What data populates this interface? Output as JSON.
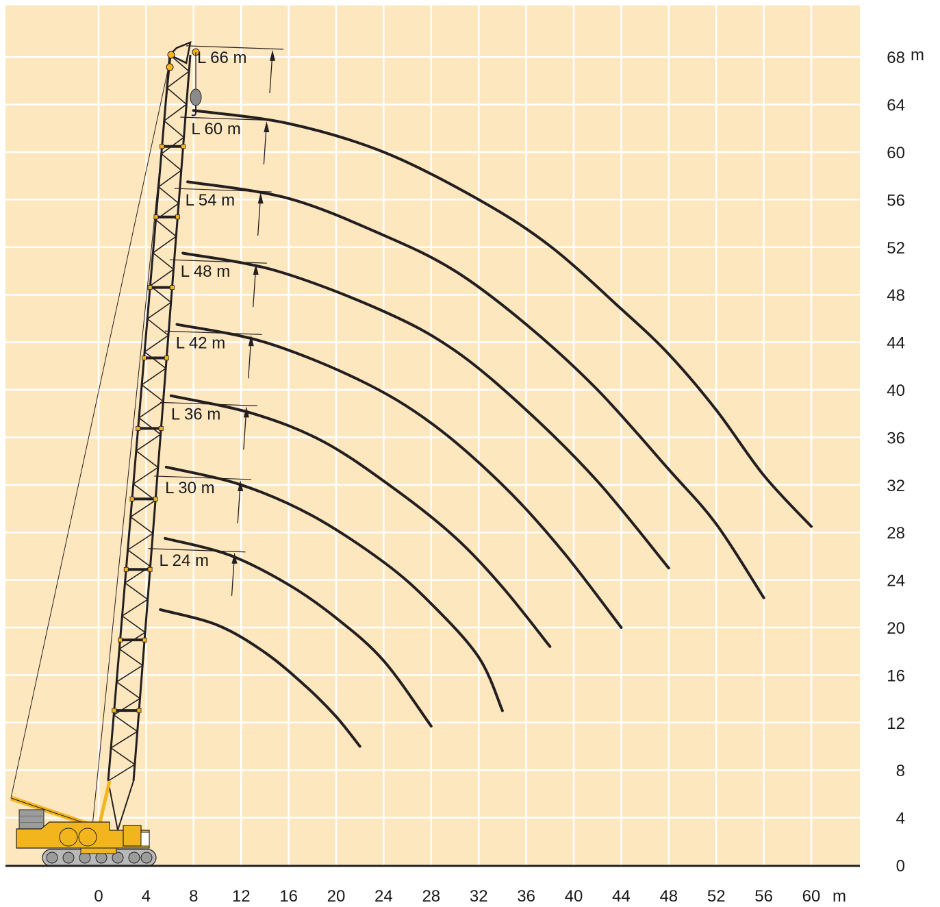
{
  "chart_data": {
    "type": "line",
    "title": "",
    "xlabel": "",
    "ylabel": "",
    "x_unit": "m",
    "y_unit": "m",
    "xlim": [
      -8.2,
      64
    ],
    "ylim": [
      0,
      72
    ],
    "x_ticks": [
      0,
      4,
      8,
      12,
      16,
      20,
      24,
      28,
      32,
      36,
      40,
      44,
      48,
      52,
      56,
      60
    ],
    "y_ticks": [
      0,
      4,
      8,
      12,
      16,
      20,
      24,
      28,
      32,
      36,
      40,
      44,
      48,
      52,
      56,
      60,
      64,
      68
    ],
    "grid": true,
    "background_color": "#fde7bf",
    "grid_color": "#ffffff",
    "curve_color": "#231f20",
    "crane_color": "#f2b51e",
    "series": [
      {
        "name": "L 24 m",
        "label_at": [
          5.1,
          25.2
        ],
        "tip_height_m": 26.8,
        "points": [
          [
            5.2,
            21.5
          ],
          [
            10.0,
            20.2
          ],
          [
            14.0,
            17.9
          ],
          [
            17.5,
            15.0
          ],
          [
            20.0,
            12.5
          ],
          [
            22.0,
            10.0
          ]
        ]
      },
      {
        "name": "L 30 m",
        "label_at": [
          5.6,
          31.3
        ],
        "tip_height_m": 32.8,
        "points": [
          [
            5.6,
            27.5
          ],
          [
            11.0,
            26.1
          ],
          [
            16.0,
            23.6
          ],
          [
            20.0,
            20.8
          ],
          [
            24.0,
            17.2
          ],
          [
            28.0,
            11.7
          ]
        ]
      },
      {
        "name": "L 36 m",
        "label_at": [
          6.1,
          37.5
        ],
        "tip_height_m": 38.8,
        "points": [
          [
            5.7,
            33.5
          ],
          [
            12.0,
            32.0
          ],
          [
            18.0,
            29.4
          ],
          [
            24.0,
            25.5
          ],
          [
            28.0,
            22.0
          ],
          [
            32.0,
            17.5
          ],
          [
            34.0,
            13.0
          ]
        ]
      },
      {
        "name": "L 42 m",
        "label_at": [
          6.5,
          43.5
        ],
        "tip_height_m": 44.8,
        "points": [
          [
            6.1,
            39.5
          ],
          [
            13.0,
            38.0
          ],
          [
            19.0,
            35.6
          ],
          [
            25.0,
            31.6
          ],
          [
            30.0,
            27.6
          ],
          [
            34.0,
            23.4
          ],
          [
            38.0,
            18.4
          ]
        ]
      },
      {
        "name": "L 48 m",
        "label_at": [
          6.9,
          49.5
        ],
        "tip_height_m": 50.8,
        "points": [
          [
            6.6,
            45.5
          ],
          [
            14.0,
            44.0
          ],
          [
            22.0,
            40.8
          ],
          [
            28.0,
            37.2
          ],
          [
            34.0,
            32.0
          ],
          [
            39.0,
            26.5
          ],
          [
            44.0,
            20.0
          ]
        ]
      },
      {
        "name": "L 54 m",
        "label_at": [
          7.3,
          55.5
        ],
        "tip_height_m": 56.8,
        "points": [
          [
            7.1,
            51.5
          ],
          [
            15.0,
            50.0
          ],
          [
            24.0,
            46.6
          ],
          [
            30.0,
            43.3
          ],
          [
            36.0,
            38.3
          ],
          [
            42.0,
            32.3
          ],
          [
            48.0,
            25.0
          ]
        ]
      },
      {
        "name": "L 60 m",
        "label_at": [
          7.8,
          61.5
        ],
        "tip_height_m": 62.8,
        "points": [
          [
            7.5,
            57.5
          ],
          [
            16.0,
            56.1
          ],
          [
            24.0,
            53.0
          ],
          [
            30.0,
            50.0
          ],
          [
            36.0,
            45.5
          ],
          [
            42.0,
            40.0
          ],
          [
            48.0,
            33.3
          ],
          [
            52.0,
            28.7
          ],
          [
            56.0,
            22.5
          ]
        ]
      },
      {
        "name": "L 66 m",
        "label_at": [
          8.3,
          67.5
        ],
        "tip_height_m": 68.8,
        "points": [
          [
            8.0,
            63.5
          ],
          [
            16.0,
            62.4
          ],
          [
            24.0,
            60.0
          ],
          [
            32.0,
            56.0
          ],
          [
            38.0,
            52.1
          ],
          [
            44.0,
            46.8
          ],
          [
            48.0,
            43.0
          ],
          [
            52.0,
            38.3
          ],
          [
            56.0,
            32.8
          ],
          [
            60.0,
            28.5
          ]
        ]
      }
    ]
  }
}
